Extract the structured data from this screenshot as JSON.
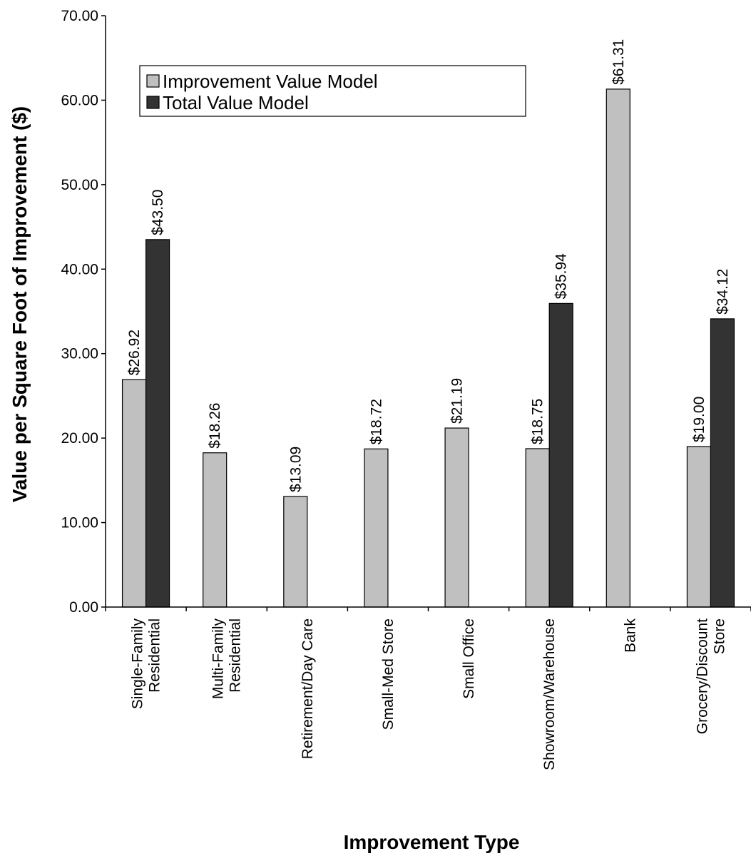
{
  "chart_data": {
    "type": "bar",
    "title": "",
    "xlabel": "Improvement Type",
    "ylabel": "Value per Square Foot of Improvement ($)",
    "ylim": [
      0,
      70
    ],
    "yticks": [
      "0.00",
      "10.00",
      "20.00",
      "30.00",
      "40.00",
      "50.00",
      "60.00",
      "70.00"
    ],
    "ytick_values": [
      0,
      10,
      20,
      30,
      40,
      50,
      60,
      70
    ],
    "grid": false,
    "legend_position": "top-left",
    "categories": [
      [
        "Single-Family",
        "Residential"
      ],
      [
        "Multi-Family",
        "Residential"
      ],
      [
        "Retirement/Day Care"
      ],
      [
        "Small-Med Store"
      ],
      [
        "Small Office"
      ],
      [
        "Showroom/Warehouse"
      ],
      [
        "Bank"
      ],
      [
        "Grocery/Discount",
        "Store"
      ]
    ],
    "series": [
      {
        "name": "Improvement Value Model",
        "color": "#c0c0c0",
        "values": [
          26.92,
          18.26,
          13.09,
          18.72,
          21.19,
          18.75,
          61.31,
          19.0
        ],
        "labels": [
          "$26.92",
          "$18.26",
          "$13.09",
          "$18.72",
          "$21.19",
          "$18.75",
          "$61.31",
          "$19.00"
        ]
      },
      {
        "name": "Total Value Model",
        "color": "#333333",
        "values": [
          43.5,
          null,
          null,
          null,
          null,
          35.94,
          null,
          34.12
        ],
        "labels": [
          "$43.50",
          null,
          null,
          null,
          null,
          "$35.94",
          null,
          "$34.12"
        ]
      }
    ]
  }
}
